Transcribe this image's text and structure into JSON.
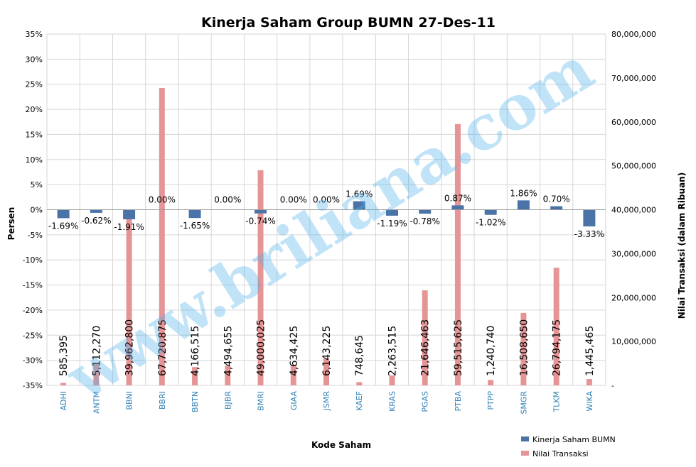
{
  "chart_data": {
    "type": "bar",
    "title": "Kinerja  Saham Group BUMN 27-Des-11",
    "xlabel": "Kode Saham",
    "ylabel": "Persen",
    "y2label": "Nilai Transaksi (dalam Ribuan)",
    "ylim": [
      -35,
      35
    ],
    "y2lim": [
      0,
      80000000
    ],
    "y_ticks": [
      "35%",
      "30%",
      "25%",
      "20%",
      "15%",
      "10%",
      "5%",
      "0%",
      "-5%",
      "-10%",
      "-15%",
      "-20%",
      "-25%",
      "-30%",
      "-35%"
    ],
    "y2_ticks": [
      "80,000,000",
      "70,000,000",
      "60,000,000",
      "50,000,000",
      "40,000,000",
      "30,000,000",
      "20,000,000",
      "10,000,000",
      "-"
    ],
    "grid": true,
    "legend_position": "bottom-right",
    "categories": [
      "ADHI",
      "ANTM",
      "BBNI",
      "BBRI",
      "BBTN",
      "BJBR",
      "BMRI",
      "GIAA",
      "JSMR",
      "KAEF",
      "KRAS",
      "PGAS",
      "PTBA",
      "PTPP",
      "SMGR",
      "TLKM",
      "WIKA"
    ],
    "series": [
      {
        "name": "Kinerja Saham  BUMN",
        "axis": "left",
        "color": "#4a74a8",
        "values": [
          -1.69,
          -0.62,
          -1.91,
          0.0,
          -1.65,
          0.0,
          -0.74,
          0.0,
          0.0,
          1.69,
          -1.19,
          -0.78,
          0.87,
          -1.02,
          1.86,
          0.7,
          -3.33
        ],
        "labels": [
          "-1.69%",
          "-0.62%",
          "-1.91%",
          "0.00%",
          "-1.65%",
          "0.00%",
          "-0.74%",
          "0.00%",
          "0.00%",
          "1.69%",
          "-1.19%",
          "-0.78%",
          "0.87%",
          "-1.02%",
          "1.86%",
          "0.70%",
          "-3.33%"
        ]
      },
      {
        "name": "Nilai Transaksi",
        "axis": "right",
        "color": "#e69597",
        "values": [
          585395,
          5112270,
          39962800,
          67720875,
          4166515,
          4494655,
          49000025,
          4634425,
          6143225,
          748645,
          2263515,
          21646463,
          59515625,
          1240740,
          16508650,
          26794175,
          1445465
        ],
        "labels": [
          "585,395",
          "5,112,270",
          "39,962,800",
          "67,720,875",
          "4,166,515",
          "4,494,655",
          "49,000,025",
          "4,634,425",
          "6,143,225",
          "748,645",
          "2,263,515",
          "21,646,463",
          "59,515,625",
          "1,240,740",
          "16,508,650",
          "26,794,175",
          "1,445,465"
        ]
      }
    ]
  },
  "watermark": "www.briliana.com"
}
